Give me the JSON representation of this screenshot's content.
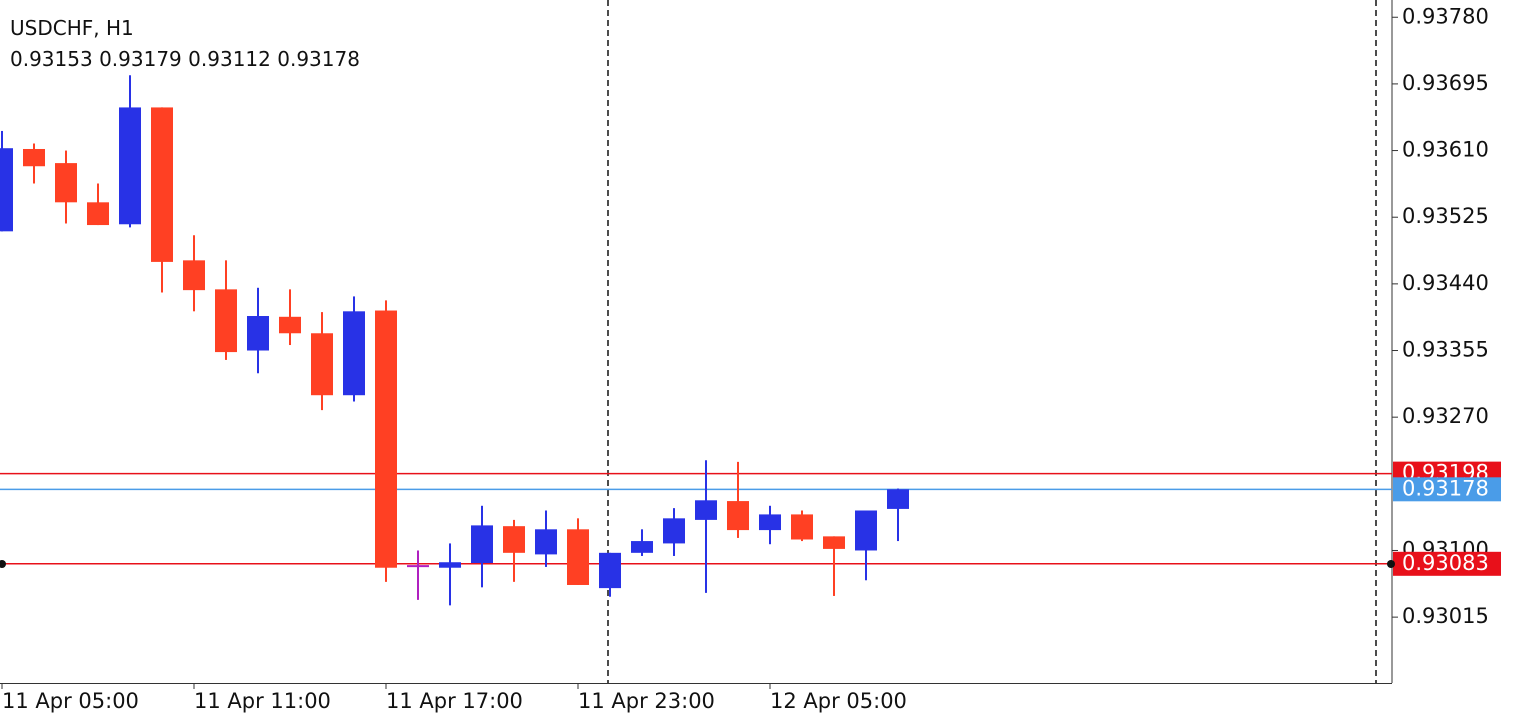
{
  "chart_data": {
    "type": "candlestick",
    "symbol": "USDCHF, H1",
    "categories": [
      "11 Apr 05:00",
      null,
      null,
      null,
      null,
      null,
      "11 Apr 11:00",
      null,
      null,
      null,
      null,
      null,
      "11 Apr 17:00",
      null,
      null,
      null,
      null,
      null,
      "11 Apr 23:00",
      null,
      null,
      null,
      null,
      null,
      "12 Apr 05:00",
      null,
      null,
      null,
      null
    ],
    "open": [
      0.93507,
      0.93612,
      0.93594,
      0.93544,
      0.93516,
      0.93665,
      0.9347,
      0.93433,
      0.93355,
      0.93398,
      0.93377,
      0.93298,
      0.93406,
      0.9308,
      0.93078,
      0.93084,
      0.93131,
      0.93095,
      0.93127,
      0.93052,
      0.93097,
      0.93109,
      0.93139,
      0.93163,
      0.93126,
      0.93146,
      0.93118,
      0.931,
      0.93153
    ],
    "high": [
      0.93635,
      0.93619,
      0.9361,
      0.93568,
      0.93706,
      0.93665,
      0.93502,
      0.9347,
      0.93435,
      0.93433,
      0.93404,
      0.93424,
      0.93419,
      0.931,
      0.93109,
      0.93157,
      0.93139,
      0.93151,
      0.93141,
      0.93097,
      0.93127,
      0.93154,
      0.93215,
      0.93213,
      0.93157,
      0.93151,
      0.93118,
      0.93151,
      0.93179
    ],
    "low": [
      0.93507,
      0.93568,
      0.93517,
      0.93515,
      0.93512,
      0.93429,
      0.93405,
      0.93343,
      0.93326,
      0.93362,
      0.93279,
      0.9329,
      0.9306,
      0.93037,
      0.9303,
      0.93053,
      0.9306,
      0.93079,
      0.93056,
      0.93041,
      0.93093,
      0.93093,
      0.93046,
      0.93116,
      0.93108,
      0.93112,
      0.93042,
      0.93062,
      0.93112
    ],
    "close": [
      0.93613,
      0.9359,
      0.93544,
      0.93515,
      0.93665,
      0.93468,
      0.93432,
      0.93353,
      0.93399,
      0.93377,
      0.93298,
      0.93405,
      0.93078,
      0.9308,
      0.93085,
      0.93132,
      0.93097,
      0.93127,
      0.93056,
      0.93097,
      0.93112,
      0.93141,
      0.93164,
      0.93126,
      0.93146,
      0.93114,
      0.93102,
      0.93151,
      0.93178
    ],
    "up_color": "#2832e6",
    "down_color": "#ff4023",
    "doji_color": "#b020c0",
    "ylim": [
      0.92931,
      0.93802
    ],
    "yticks": [
      {
        "value": 0.9378,
        "label": "0.93780"
      },
      0.93695,
      {
        "value": 0.9361,
        "label": "0.93610"
      },
      0.93525,
      {
        "value": 0.9344,
        "label": "0.93440"
      },
      0.93355,
      {
        "value": 0.9327,
        "label": "0.93270"
      },
      {
        "value": 0.931,
        "label": "0.93100"
      },
      0.93015
    ],
    "levels": [
      {
        "value": 0.93198,
        "color": "#e8101a"
      },
      {
        "value": 0.93178,
        "color": "#4a9ce8"
      },
      {
        "value": 0.93083,
        "color": "#e8101a"
      }
    ]
  }
}
